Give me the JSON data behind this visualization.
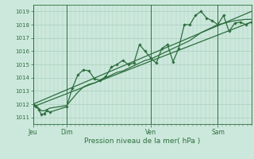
{
  "title": "Pression niveau de la mer( hPa )",
  "bg_color": "#cce8dc",
  "grid_color": "#aacfbe",
  "line_color": "#2d6e3e",
  "marker_color": "#2d6e3e",
  "ylim": [
    1010.5,
    1019.5
  ],
  "yticks": [
    1011,
    1012,
    1013,
    1014,
    1015,
    1016,
    1017,
    1018,
    1019
  ],
  "xlim": [
    0,
    312
  ],
  "day_ticks": [
    0,
    48,
    168,
    264
  ],
  "day_labels": [
    "Jeu",
    "Dim",
    "Ven",
    "Sam"
  ],
  "series2_x": [
    0,
    4,
    8,
    12,
    16,
    20,
    24,
    48,
    56,
    64,
    72,
    80,
    88,
    96,
    104,
    112,
    120,
    128,
    136,
    144,
    152,
    160,
    168,
    176,
    184,
    192,
    200,
    208,
    216,
    224,
    232,
    240,
    248,
    256,
    264,
    272,
    280,
    288,
    296,
    304,
    312
  ],
  "series2_y": [
    1012.0,
    1011.85,
    1011.6,
    1011.2,
    1011.3,
    1011.5,
    1011.4,
    1011.8,
    1013.2,
    1014.2,
    1014.6,
    1014.5,
    1013.9,
    1013.8,
    1014.1,
    1014.8,
    1015.0,
    1015.3,
    1015.0,
    1015.1,
    1016.5,
    1016.0,
    1015.5,
    1015.1,
    1016.2,
    1016.5,
    1015.2,
    1016.2,
    1018.0,
    1018.0,
    1018.7,
    1019.0,
    1018.5,
    1018.3,
    1018.0,
    1018.7,
    1017.5,
    1018.1,
    1018.2,
    1018.0,
    1018.2
  ],
  "series1_x": [
    0,
    312
  ],
  "series1_y": [
    1011.8,
    1018.2
  ],
  "trend2_x": [
    0,
    312
  ],
  "trend2_y": [
    1012.0,
    1019.0
  ],
  "smooth_x": [
    0,
    4,
    8,
    12,
    16,
    20,
    24,
    48,
    56,
    64,
    72,
    80,
    88,
    96,
    104,
    112,
    120,
    128,
    136,
    144,
    152,
    160,
    168,
    176,
    184,
    192,
    200,
    208,
    216,
    224,
    232,
    240,
    248,
    256,
    264,
    272,
    280,
    288,
    296,
    304,
    312
  ],
  "smooth_y": [
    1012.0,
    1011.9,
    1011.7,
    1011.5,
    1011.5,
    1011.6,
    1011.7,
    1011.9,
    1012.4,
    1012.9,
    1013.3,
    1013.5,
    1013.6,
    1013.8,
    1014.0,
    1014.2,
    1014.4,
    1014.5,
    1014.7,
    1014.9,
    1015.1,
    1015.3,
    1015.4,
    1015.6,
    1015.8,
    1016.0,
    1016.2,
    1016.4,
    1016.6,
    1016.8,
    1017.1,
    1017.4,
    1017.6,
    1017.8,
    1018.0,
    1018.1,
    1018.2,
    1018.3,
    1018.35,
    1018.4,
    1018.4
  ]
}
